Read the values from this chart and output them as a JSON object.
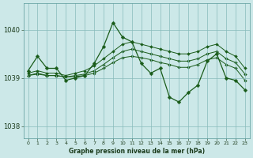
{
  "title": "Graphe pression niveau de la mer (hPa)",
  "background_color": "#cce8e8",
  "grid_color": "#88bbbb",
  "line_color": "#1a5c1a",
  "xlim_min": -0.5,
  "xlim_max": 23.5,
  "ylim_min": 1037.75,
  "ylim_max": 1040.55,
  "yticks": [
    1038,
    1039,
    1040
  ],
  "xticks": [
    0,
    1,
    2,
    3,
    4,
    5,
    6,
    7,
    8,
    9,
    10,
    11,
    12,
    13,
    14,
    15,
    16,
    17,
    18,
    19,
    20,
    21,
    22,
    23
  ],
  "series": [
    {
      "x": [
        0,
        1,
        2,
        3,
        4,
        5,
        6,
        7,
        8,
        9,
        10,
        11,
        12,
        13,
        14,
        15,
        16,
        17,
        18,
        19,
        20,
        21,
        22,
        23
      ],
      "y": [
        1039.15,
        1039.45,
        1039.2,
        1039.2,
        1038.95,
        1039.0,
        1039.05,
        1039.3,
        1039.65,
        1040.15,
        1039.85,
        1039.75,
        1039.3,
        1039.1,
        1039.2,
        1038.6,
        1038.5,
        1038.7,
        1038.85,
        1039.35,
        1039.5,
        1039.0,
        1038.95,
        1038.75
      ]
    },
    {
      "x": [
        0,
        1,
        2,
        3,
        4,
        5,
        6,
        7,
        8,
        9,
        10,
        11,
        12,
        13,
        14,
        15,
        16,
        17,
        18,
        19,
        20,
        21,
        22,
        23
      ],
      "y": [
        1039.1,
        1039.15,
        1039.1,
        1039.1,
        1039.05,
        1039.1,
        1039.15,
        1039.25,
        1039.4,
        1039.55,
        1039.7,
        1039.75,
        1039.7,
        1039.65,
        1039.6,
        1039.55,
        1039.5,
        1039.5,
        1039.55,
        1039.65,
        1039.7,
        1039.55,
        1039.45,
        1039.2
      ]
    },
    {
      "x": [
        0,
        1,
        2,
        3,
        4,
        5,
        6,
        7,
        8,
        9,
        10,
        11,
        12,
        13,
        14,
        15,
        16,
        17,
        18,
        19,
        20,
        21,
        22,
        23
      ],
      "y": [
        1039.05,
        1039.1,
        1039.05,
        1039.05,
        1039.02,
        1039.05,
        1039.08,
        1039.15,
        1039.28,
        1039.42,
        1039.55,
        1039.6,
        1039.55,
        1039.5,
        1039.45,
        1039.4,
        1039.35,
        1039.35,
        1039.4,
        1039.5,
        1039.55,
        1039.4,
        1039.32,
        1039.08
      ]
    },
    {
      "x": [
        0,
        1,
        2,
        3,
        4,
        5,
        6,
        7,
        8,
        9,
        10,
        11,
        12,
        13,
        14,
        15,
        16,
        17,
        18,
        19,
        20,
        21,
        22,
        23
      ],
      "y": [
        1039.05,
        1039.08,
        1039.05,
        1039.05,
        1039.02,
        1039.03,
        1039.05,
        1039.1,
        1039.2,
        1039.32,
        1039.42,
        1039.45,
        1039.42,
        1039.38,
        1039.32,
        1039.28,
        1039.22,
        1039.22,
        1039.28,
        1039.38,
        1039.42,
        1039.28,
        1039.2,
        1038.95
      ]
    }
  ]
}
